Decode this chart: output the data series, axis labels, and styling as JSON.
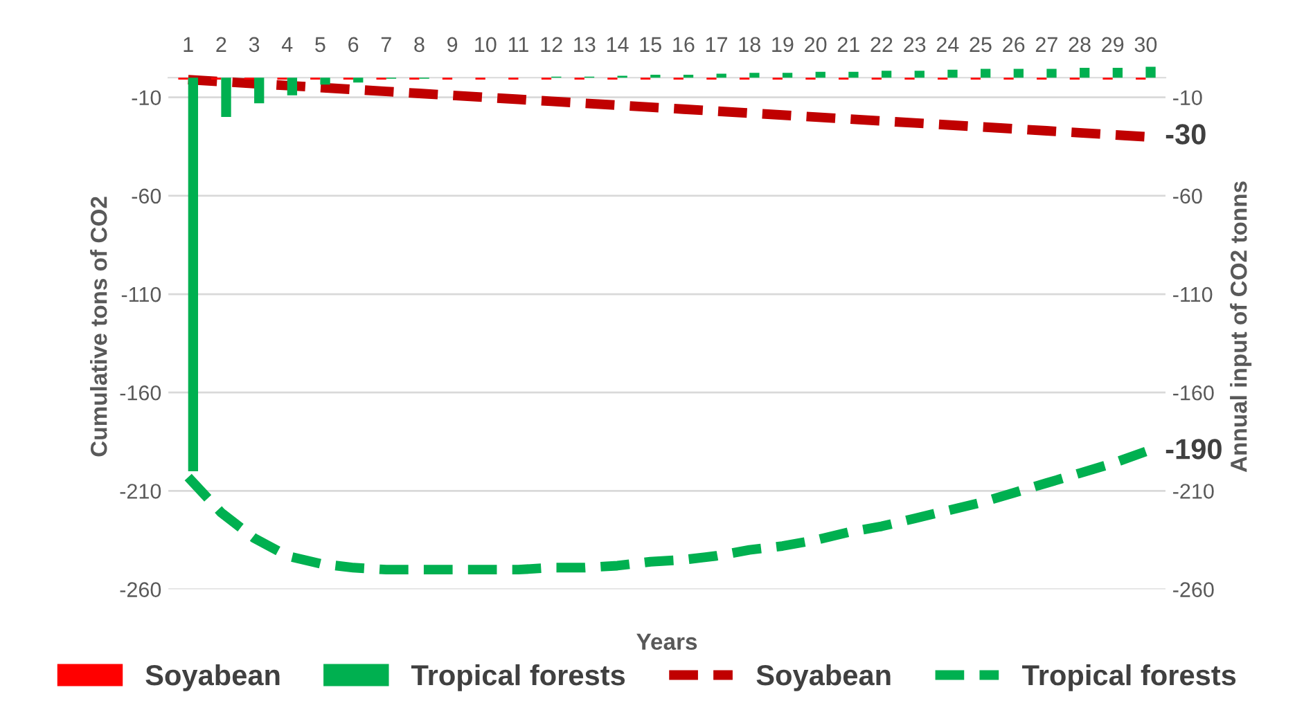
{
  "chart_data": {
    "type": "bar",
    "xlabel": "Years",
    "ylabel": "Cumulative tons of CO2",
    "y2label": "Annual input of CO2 tonns",
    "categories": [
      "1",
      "2",
      "3",
      "4",
      "5",
      "6",
      "7",
      "8",
      "9",
      "10",
      "11",
      "12",
      "13",
      "14",
      "15",
      "16",
      "17",
      "18",
      "19",
      "20",
      "21",
      "22",
      "23",
      "24",
      "25",
      "26",
      "27",
      "28",
      "29",
      "30"
    ],
    "series": [
      {
        "name": "Soyabean",
        "axis": "y2",
        "color": "#ff0000",
        "values": [
          -1,
          -1,
          -1,
          -1,
          -1,
          -1,
          -1,
          -1,
          -1,
          -1,
          -1,
          -1,
          -1,
          -1,
          -1,
          -1,
          -1,
          -1,
          -1,
          -1,
          -1,
          -1,
          -1,
          -1,
          -1,
          -1,
          -1,
          -1,
          -1,
          -1
        ]
      },
      {
        "name": "Tropical forests",
        "axis": "y2",
        "color": "#00b050",
        "values": [
          -200,
          -20,
          -13,
          -9,
          -3.5,
          -2.5,
          -0.5,
          -0.5,
          0,
          0,
          0,
          0.5,
          0.5,
          1,
          1.5,
          1.5,
          2,
          2.5,
          2.5,
          3,
          3,
          3.5,
          3.5,
          4,
          4.5,
          4.5,
          4.5,
          5,
          5,
          5.5
        ]
      },
      {
        "name": "Soyabean",
        "type": "line",
        "axis": "y",
        "color": "#c00000",
        "line_style": "dashed",
        "values": [
          -1,
          -2,
          -3,
          -4,
          -5,
          -6,
          -7,
          -8,
          -9,
          -10,
          -11,
          -12,
          -13,
          -14,
          -15,
          -16,
          -17,
          -18,
          -19,
          -20,
          -21,
          -22,
          -23,
          -24,
          -25,
          -26,
          -27,
          -28,
          -29,
          -30
        ],
        "value_labels": [
          null,
          null,
          null,
          null,
          null,
          null,
          null,
          null,
          null,
          null,
          null,
          null,
          null,
          null,
          null,
          null,
          null,
          null,
          null,
          null,
          null,
          null,
          null,
          null,
          null,
          null,
          null,
          null,
          null,
          "-30"
        ]
      },
      {
        "name": "Tropical forests",
        "type": "line",
        "axis": "y",
        "color": "#00b050",
        "line_style": "dashed",
        "values": [
          -203,
          -221,
          -234,
          -243,
          -247,
          -249,
          -250,
          -250,
          -250,
          -250,
          -250,
          -249,
          -249,
          -248,
          -246,
          -245,
          -243,
          -240,
          -238,
          -235,
          -231,
          -228,
          -224,
          -220,
          -216,
          -211,
          -206,
          -201,
          -196,
          -190
        ],
        "value_labels": [
          null,
          null,
          null,
          null,
          null,
          null,
          null,
          null,
          null,
          null,
          null,
          null,
          null,
          null,
          null,
          null,
          null,
          null,
          null,
          null,
          null,
          null,
          null,
          null,
          null,
          null,
          null,
          null,
          null,
          "-190"
        ]
      }
    ],
    "ylim": [
      -260,
      7
    ],
    "yticks": [
      -10,
      -60,
      -110,
      -160,
      -210,
      -260
    ],
    "y2lim": [
      -260,
      7
    ],
    "y2ticks": [
      -10,
      -60,
      -110,
      -160,
      -210,
      -260
    ],
    "grid": "y",
    "legend": "bottom"
  }
}
